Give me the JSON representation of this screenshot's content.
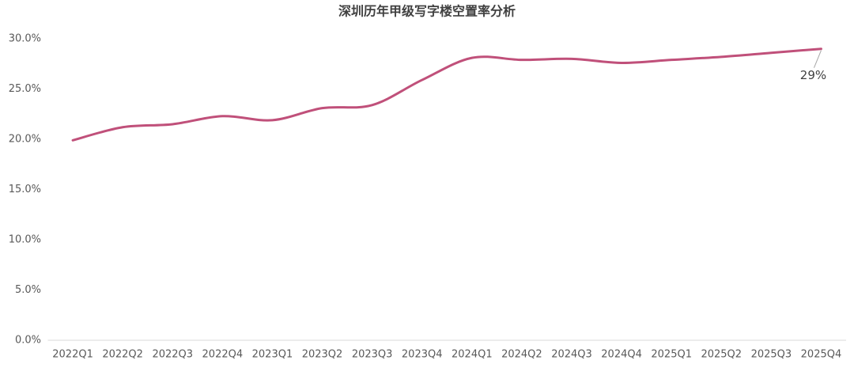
{
  "chart_data": {
    "type": "line",
    "title": "深圳历年甲级写字楼空置率分析",
    "categories": [
      "2022Q1",
      "2022Q2",
      "2022Q3",
      "2022Q4",
      "2023Q1",
      "2023Q2",
      "2023Q3",
      "2023Q4",
      "2024Q1",
      "2024Q2",
      "2024Q3",
      "2024Q4",
      "2025Q1",
      "2025Q2",
      "2025Q3",
      "2025Q4"
    ],
    "values": [
      19.9,
      21.2,
      21.5,
      22.3,
      21.9,
      23.1,
      23.4,
      25.9,
      28.1,
      27.9,
      28.0,
      27.6,
      27.9,
      28.2,
      28.6,
      29.0
    ],
    "value_labels": [
      null,
      null,
      null,
      null,
      null,
      null,
      null,
      null,
      null,
      null,
      null,
      null,
      null,
      null,
      null,
      "29%"
    ],
    "color": "#c0507a",
    "ylim": [
      0,
      30
    ],
    "yticks": [
      {
        "value": 0,
        "label": "0.0%"
      },
      {
        "value": 5,
        "label": "5.0%"
      },
      {
        "value": 10,
        "label": "10.0%"
      },
      {
        "value": 15,
        "label": "15.0%"
      },
      {
        "value": 20,
        "label": "20.0%"
      },
      {
        "value": 25,
        "label": "25.0%"
      },
      {
        "value": 30,
        "label": "30.0%"
      }
    ],
    "grid": false
  }
}
